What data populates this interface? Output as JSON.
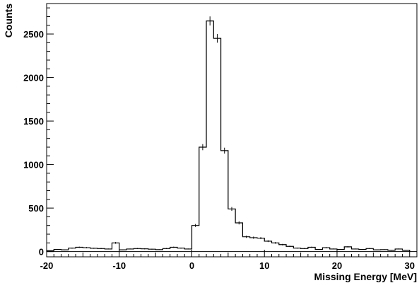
{
  "chart_data": {
    "type": "histogram",
    "title": "",
    "xlabel": "Missing Energy [MeV]",
    "ylabel": "Counts",
    "xlim": [
      -20,
      31
    ],
    "ylim": [
      -60,
      2850
    ],
    "x_ticks": [
      -20,
      -10,
      0,
      10,
      20,
      30
    ],
    "y_ticks": [
      0,
      500,
      1000,
      1500,
      2000,
      2500
    ],
    "x_tick_labels": [
      "-20",
      "-10",
      "0",
      "10",
      "20",
      "30"
    ],
    "y_tick_labels": [
      "0",
      "500",
      "1000",
      "1500",
      "2000",
      "2500"
    ],
    "grid": false,
    "legend": "none",
    "zero_line": true,
    "bin_edges": [
      -20,
      -19,
      -18,
      -17,
      -16,
      -15,
      -14,
      -13,
      -12,
      -11,
      -10,
      -9,
      -8,
      -7,
      -6,
      -5,
      -4,
      -3,
      -2,
      -1,
      0,
      1,
      2,
      3,
      4,
      5,
      6,
      7,
      8,
      9,
      10,
      11,
      12,
      13,
      14,
      15,
      16,
      17,
      18,
      19,
      20,
      21,
      22,
      23,
      24,
      25,
      26,
      27,
      28,
      29,
      30
    ],
    "counts": [
      10,
      25,
      20,
      40,
      50,
      45,
      38,
      35,
      30,
      100,
      20,
      30,
      35,
      32,
      28,
      22,
      35,
      50,
      40,
      30,
      300,
      1200,
      2650,
      2450,
      1160,
      490,
      330,
      170,
      160,
      155,
      120,
      100,
      80,
      60,
      40,
      35,
      50,
      25,
      45,
      30,
      25,
      55,
      30,
      25,
      35,
      20,
      22,
      15,
      30,
      15
    ],
    "errors": [
      3,
      5,
      4,
      6,
      7,
      7,
      6,
      6,
      5,
      10,
      4,
      5,
      6,
      6,
      5,
      5,
      6,
      7,
      6,
      5,
      17,
      35,
      52,
      50,
      34,
      22,
      18,
      13,
      13,
      12,
      11,
      10,
      9,
      8,
      6,
      6,
      7,
      5,
      7,
      5,
      5,
      7,
      5,
      5,
      6,
      4,
      5,
      4,
      5,
      4
    ]
  },
  "colors": {
    "line": "#000000",
    "background": "#ffffff"
  }
}
